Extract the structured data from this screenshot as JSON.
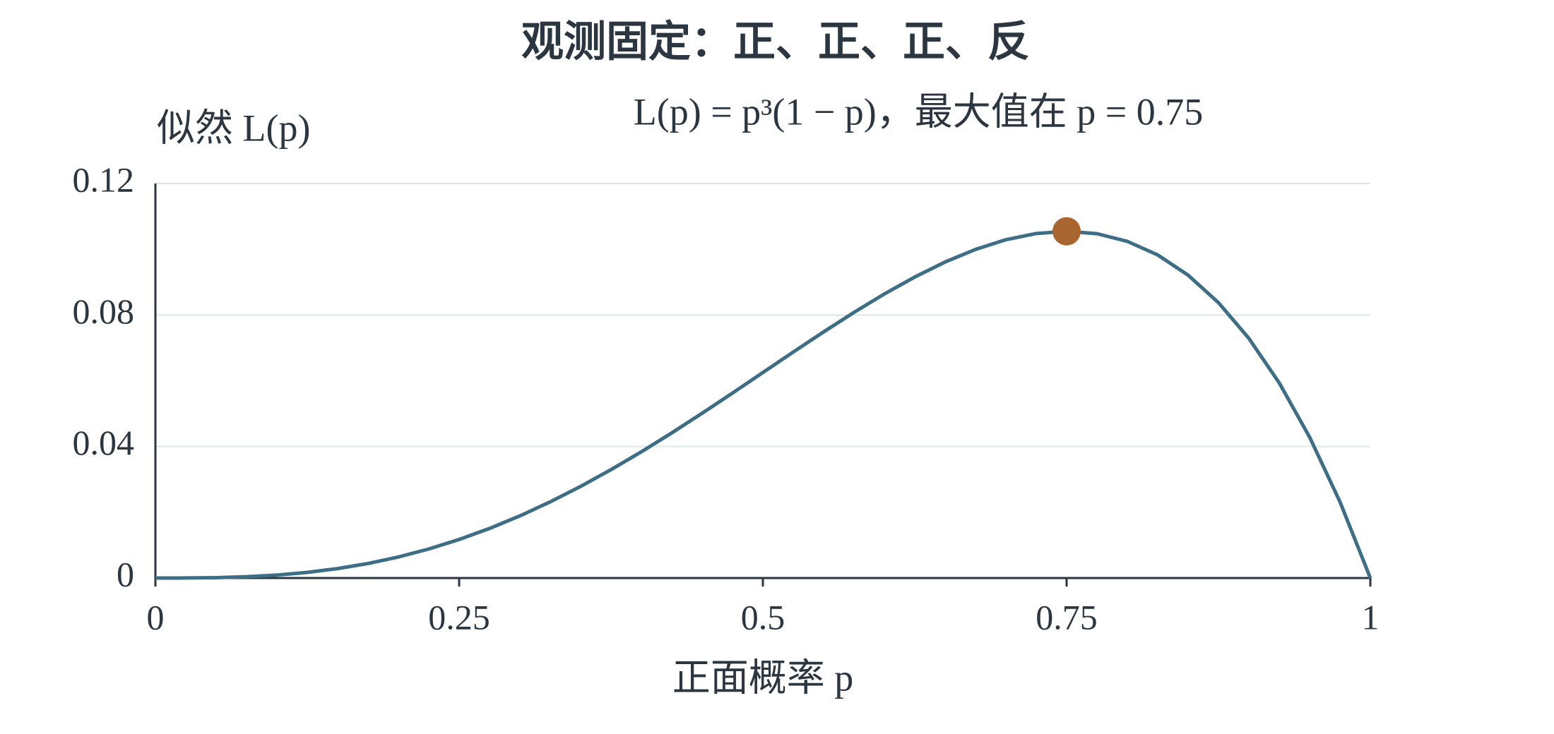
{
  "chart_data": {
    "type": "line",
    "title": "观测固定：正、正、正、反",
    "subtitle": "L(p) = p³(1 − p)，最大值在 p = 0.75",
    "y_label": "似然 L(p)",
    "x_label": "正面概率 p",
    "x": [
      0,
      0.025,
      0.05,
      0.075,
      0.1,
      0.125,
      0.15,
      0.175,
      0.2,
      0.225,
      0.25,
      0.275,
      0.3,
      0.325,
      0.35,
      0.375,
      0.4,
      0.425,
      0.45,
      0.475,
      0.5,
      0.525,
      0.55,
      0.575,
      0.6,
      0.625,
      0.65,
      0.675,
      0.7,
      0.725,
      0.75,
      0.775,
      0.8,
      0.825,
      0.85,
      0.875,
      0.9,
      0.925,
      0.95,
      0.975,
      1
    ],
    "series": [
      {
        "color": "#3d6e85",
        "values": [
          0,
          1.52e-05,
          0.000119,
          0.00039,
          0.0009,
          0.001709,
          0.002869,
          0.004421,
          0.0064,
          0.008828,
          0.011719,
          0.015078,
          0.0189,
          0.023172,
          0.027869,
          0.032959,
          0.0384,
          0.04414,
          0.050119,
          0.056265,
          0.0625,
          0.068734,
          0.074869,
          0.080796,
          0.0864,
          0.091553,
          0.096119,
          0.099953,
          0.1029,
          0.104796,
          0.105469,
          0.104734,
          0.1024,
          0.098265,
          0.092119,
          0.08374,
          0.0729,
          0.059359,
          0.042869,
          0.023171,
          0
        ]
      }
    ],
    "max_point": {
      "x": 0.75,
      "y": 0.105469,
      "color": "#a9652f"
    },
    "xlim": [
      0,
      1
    ],
    "xticks": [
      0,
      0.25,
      0.5,
      0.75,
      1
    ],
    "ylim": [
      0,
      0.12
    ],
    "yticks": [
      0,
      0.04,
      0.08,
      0.12
    ],
    "grid": true
  }
}
